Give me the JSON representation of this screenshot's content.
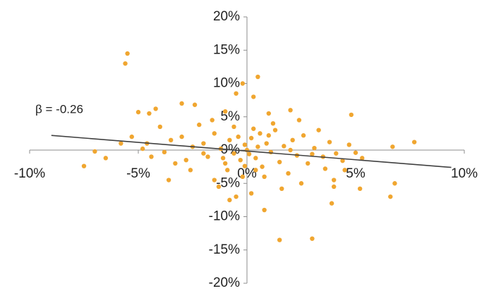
{
  "chart_data": {
    "type": "scatter",
    "annotation": "β = -0.26",
    "color": "#f0a630",
    "x": [
      -5.5,
      -5.6,
      0.5,
      1.5,
      3,
      0.8,
      3.9,
      7.7,
      6.7,
      6.8,
      6.6,
      5.2,
      -7.5,
      -6.5,
      -7,
      -5.8,
      -5,
      -4.5,
      -2.4,
      -3,
      -1,
      -0.5,
      -0.2,
      0.3,
      1,
      2,
      4.8,
      -0.8,
      -0.5,
      0.2,
      -3.6,
      -1.5,
      2.5,
      4.5,
      4,
      4,
      -4.2,
      -4,
      -3.5,
      -3,
      -2.5,
      -2,
      -1.8,
      -1.5,
      -1.2,
      -1,
      -0.8,
      -0.6,
      -0.4,
      -0.3,
      -0.1,
      0,
      0.1,
      0.2,
      0.4,
      0.5,
      0.6,
      0.7,
      0.9,
      1.1,
      1.3,
      1.5,
      1.7,
      1.9,
      2.1,
      2.3,
      2.6,
      2.8,
      3.1,
      3.3,
      3.5,
      3.8,
      4.1,
      4.4,
      4.7,
      5,
      5.3,
      -4.8,
      -4.4,
      -3.8,
      -3.3,
      -2.8,
      -2.2,
      -1.6,
      -0.9,
      -0.6,
      -0.2,
      0.3,
      0.8,
      1.2,
      -5.3,
      -4.6,
      -2.6,
      -1.3,
      1.6,
      2.4,
      3.6,
      -0.1,
      0.4,
      1.0,
      -2.0,
      -1.1,
      2.0,
      3.0
    ],
    "y": [
      14.5,
      13,
      11,
      -13.5,
      -13.3,
      -9,
      -8,
      1.2,
      0.5,
      -5,
      -7,
      -5.8,
      -2.4,
      -1.2,
      -0.2,
      1,
      5.7,
      5.5,
      6.8,
      7,
      5.8,
      8.5,
      10,
      8,
      5.5,
      6,
      5.3,
      -7.5,
      -7,
      -6.5,
      -4.5,
      -4.5,
      -5,
      -3,
      -5.5,
      -4.5,
      6.2,
      3.5,
      1.5,
      2,
      0.5,
      1,
      -1,
      2.5,
      0.2,
      -2,
      1.5,
      -0.5,
      2,
      -1.5,
      0.8,
      0,
      -0.6,
      1.8,
      -1.2,
      0.5,
      2.5,
      -2.5,
      1,
      -0.3,
      3,
      -1.8,
      0.6,
      -3.5,
      1.5,
      -0.8,
      2.2,
      -2,
      0.3,
      3,
      -1,
      1.2,
      -0.5,
      -1.6,
      0.8,
      -0.4,
      -1.2,
      0.2,
      -1,
      -0.3,
      -2,
      -1.5,
      3.8,
      4.5,
      -3,
      3.5,
      -4,
      3.2,
      -4,
      4,
      2,
      1,
      -3,
      -5.5,
      -5.8,
      4.5,
      -2.8,
      -2.4,
      -3,
      2.2,
      -0.5,
      -1.2,
      0,
      -0.6
    ],
    "trendline": {
      "color": "#404040",
      "x": [
        -9,
        9.4
      ],
      "y": [
        2.2,
        -2.6
      ]
    },
    "xlim": [
      -10,
      10
    ],
    "xticks": [
      {
        "value": -10,
        "label": "-10%"
      },
      {
        "value": -5,
        "label": "-5%"
      },
      {
        "value": 0,
        "label": "0%"
      },
      {
        "value": 5,
        "label": "5%"
      },
      {
        "value": 10,
        "label": "10%"
      }
    ],
    "ylim": [
      -20,
      20
    ],
    "yticks": [
      {
        "value": -20,
        "label": "-20%"
      },
      {
        "value": -15,
        "label": "-15%"
      },
      {
        "value": -10,
        "label": "-10%"
      },
      {
        "value": -5,
        "label": "-5%"
      },
      {
        "value": 0,
        "label": "0%"
      },
      {
        "value": 5,
        "label": "5%"
      },
      {
        "value": 10,
        "label": "10%"
      },
      {
        "value": 15,
        "label": "15%"
      },
      {
        "value": 20,
        "label": "20%"
      }
    ]
  }
}
